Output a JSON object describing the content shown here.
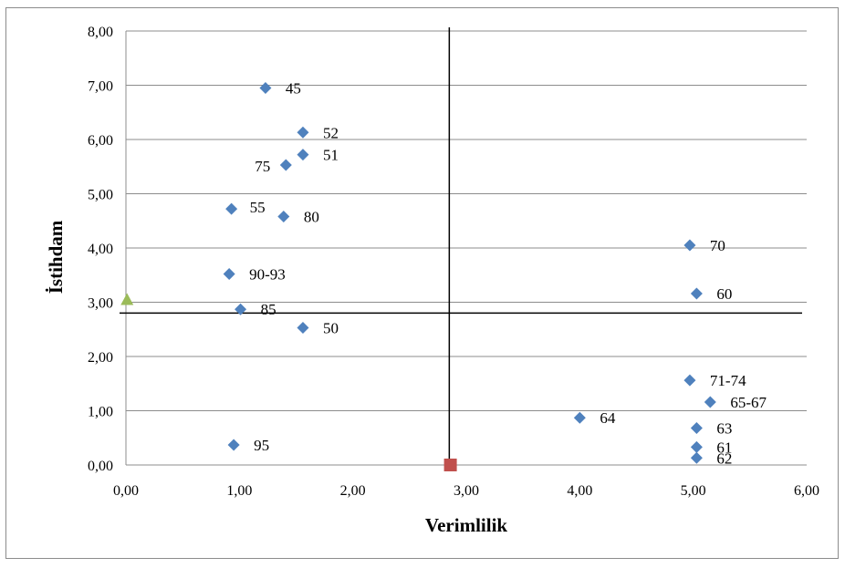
{
  "chart_data": {
    "type": "scatter",
    "title": "",
    "xlabel": "Verimlilik",
    "ylabel": "İstihdam",
    "xlim": [
      0,
      6
    ],
    "ylim": [
      0,
      8
    ],
    "x_ticks": [
      "0,00",
      "1,00",
      "2,00",
      "3,00",
      "4,00",
      "5,00",
      "6,00"
    ],
    "y_ticks": [
      "0,00",
      "1,00",
      "2,00",
      "3,00",
      "4,00",
      "5,00",
      "6,00",
      "7,00",
      "8,00"
    ],
    "grid": "horizontal",
    "colors": {
      "points": "#4f81bd",
      "triangle": "#9bbb59",
      "square": "#c0504d",
      "grid": "#8c8c8c",
      "crosshair": "#000000"
    },
    "crosshair": {
      "x": 2.85,
      "y": 2.8
    },
    "points": [
      {
        "label": "45",
        "x": 1.23,
        "y": 6.95
      },
      {
        "label": "52",
        "x": 1.56,
        "y": 6.13
      },
      {
        "label": "51",
        "x": 1.56,
        "y": 5.72
      },
      {
        "label": "75",
        "x": 1.41,
        "y": 5.53
      },
      {
        "label": "55",
        "x": 0.93,
        "y": 4.72
      },
      {
        "label": "80",
        "x": 1.39,
        "y": 4.58
      },
      {
        "label": "90-93",
        "x": 0.91,
        "y": 3.52
      },
      {
        "label": "85",
        "x": 1.01,
        "y": 2.87
      },
      {
        "label": "50",
        "x": 1.56,
        "y": 2.53
      },
      {
        "label": "95",
        "x": 0.95,
        "y": 0.37
      },
      {
        "label": "70",
        "x": 4.97,
        "y": 4.05
      },
      {
        "label": "60",
        "x": 5.03,
        "y": 3.16
      },
      {
        "label": "71-74",
        "x": 4.97,
        "y": 1.56
      },
      {
        "label": "65-67",
        "x": 5.15,
        "y": 1.16
      },
      {
        "label": "64",
        "x": 4.0,
        "y": 0.87
      },
      {
        "label": "63",
        "x": 5.03,
        "y": 0.68
      },
      {
        "label": "61",
        "x": 5.03,
        "y": 0.33
      },
      {
        "label": "62",
        "x": 5.03,
        "y": 0.13
      }
    ],
    "extra_markers": [
      {
        "shape": "triangle",
        "x": 0.01,
        "y": 3.05
      },
      {
        "shape": "square",
        "x": 2.86,
        "y": 0.0
      }
    ]
  }
}
